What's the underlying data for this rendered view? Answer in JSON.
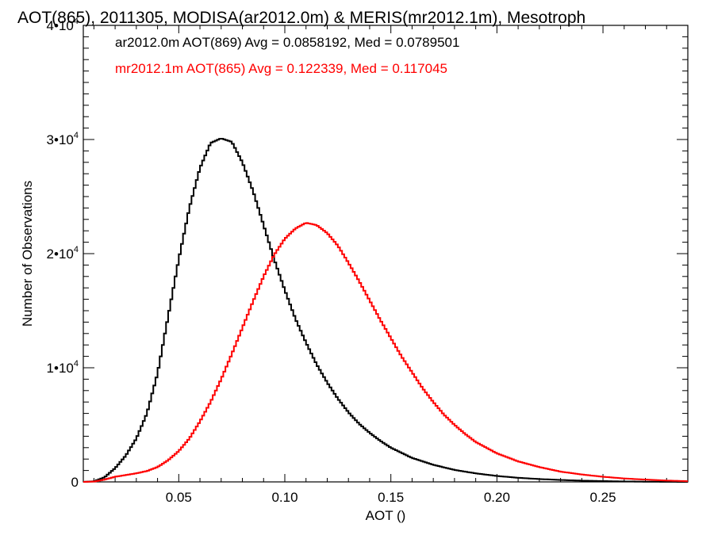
{
  "chart_data": {
    "type": "line",
    "step": true,
    "title": "AOT(865), 2011305, MODISA(ar2012.0m) & MERIS(mr2012.1m), Mesotroph",
    "xlabel": "AOT ()",
    "ylabel": "Number of Observations",
    "xlim": [
      0.005,
      0.29
    ],
    "ylim": [
      0,
      40000
    ],
    "x_ticks": [
      {
        "value": 0.05,
        "label": "0.05"
      },
      {
        "value": 0.1,
        "label": "0.10"
      },
      {
        "value": 0.15,
        "label": "0.15"
      },
      {
        "value": 0.2,
        "label": "0.20"
      },
      {
        "value": 0.25,
        "label": "0.25"
      }
    ],
    "y_ticks": [
      {
        "value": 0,
        "base": "0",
        "exp": ""
      },
      {
        "value": 10000,
        "base": "1•10",
        "exp": "4"
      },
      {
        "value": 20000,
        "base": "2•10",
        "exp": "4"
      },
      {
        "value": 30000,
        "base": "3•10",
        "exp": "4"
      },
      {
        "value": 40000,
        "base": "4•10",
        "exp": "4"
      }
    ],
    "grid": false,
    "legend_position": "top-left",
    "series": [
      {
        "name": "ar2012.0m",
        "legend_text": "ar2012.0m AOT(869) Avg = 0.0858192, Med = 0.0789501",
        "color": "#000000",
        "points": [
          [
            0.005,
            0
          ],
          [
            0.01,
            50
          ],
          [
            0.015,
            400
          ],
          [
            0.02,
            1200
          ],
          [
            0.025,
            2300
          ],
          [
            0.03,
            3800
          ],
          [
            0.035,
            6000
          ],
          [
            0.04,
            9500
          ],
          [
            0.045,
            14500
          ],
          [
            0.05,
            19500
          ],
          [
            0.055,
            24000
          ],
          [
            0.06,
            27500
          ],
          [
            0.065,
            29700
          ],
          [
            0.07,
            30100
          ],
          [
            0.075,
            29800
          ],
          [
            0.08,
            28000
          ],
          [
            0.085,
            25500
          ],
          [
            0.09,
            22500
          ],
          [
            0.095,
            19500
          ],
          [
            0.1,
            16800
          ],
          [
            0.105,
            14300
          ],
          [
            0.11,
            12200
          ],
          [
            0.115,
            10300
          ],
          [
            0.12,
            8700
          ],
          [
            0.125,
            7300
          ],
          [
            0.13,
            6100
          ],
          [
            0.135,
            5100
          ],
          [
            0.14,
            4300
          ],
          [
            0.145,
            3600
          ],
          [
            0.15,
            3000
          ],
          [
            0.16,
            2100
          ],
          [
            0.17,
            1500
          ],
          [
            0.18,
            1050
          ],
          [
            0.19,
            750
          ],
          [
            0.2,
            520
          ],
          [
            0.21,
            360
          ],
          [
            0.22,
            250
          ],
          [
            0.23,
            170
          ],
          [
            0.24,
            110
          ],
          [
            0.25,
            70
          ],
          [
            0.26,
            40
          ],
          [
            0.27,
            20
          ],
          [
            0.28,
            10
          ],
          [
            0.29,
            0
          ]
        ]
      },
      {
        "name": "mr2012.1m",
        "legend_text": "mr2012.1m AOT(865) Avg = 0.122339, Med = 0.117045",
        "color": "#ff0000",
        "points": [
          [
            0.005,
            0
          ],
          [
            0.01,
            30
          ],
          [
            0.015,
            200
          ],
          [
            0.02,
            450
          ],
          [
            0.025,
            600
          ],
          [
            0.03,
            750
          ],
          [
            0.035,
            950
          ],
          [
            0.04,
            1300
          ],
          [
            0.045,
            1900
          ],
          [
            0.05,
            2700
          ],
          [
            0.055,
            3800
          ],
          [
            0.06,
            5300
          ],
          [
            0.065,
            7000
          ],
          [
            0.07,
            9000
          ],
          [
            0.075,
            11200
          ],
          [
            0.08,
            13500
          ],
          [
            0.085,
            15800
          ],
          [
            0.09,
            18000
          ],
          [
            0.095,
            19900
          ],
          [
            0.1,
            21300
          ],
          [
            0.105,
            22200
          ],
          [
            0.11,
            22700
          ],
          [
            0.115,
            22500
          ],
          [
            0.12,
            21800
          ],
          [
            0.125,
            20700
          ],
          [
            0.13,
            19200
          ],
          [
            0.135,
            17600
          ],
          [
            0.14,
            15900
          ],
          [
            0.145,
            14200
          ],
          [
            0.15,
            12600
          ],
          [
            0.155,
            11000
          ],
          [
            0.16,
            9600
          ],
          [
            0.165,
            8200
          ],
          [
            0.17,
            7000
          ],
          [
            0.175,
            5900
          ],
          [
            0.18,
            5000
          ],
          [
            0.185,
            4200
          ],
          [
            0.19,
            3500
          ],
          [
            0.2,
            2500
          ],
          [
            0.21,
            1800
          ],
          [
            0.22,
            1300
          ],
          [
            0.23,
            900
          ],
          [
            0.24,
            650
          ],
          [
            0.25,
            450
          ],
          [
            0.26,
            300
          ],
          [
            0.27,
            200
          ],
          [
            0.28,
            120
          ],
          [
            0.29,
            60
          ]
        ]
      }
    ]
  }
}
